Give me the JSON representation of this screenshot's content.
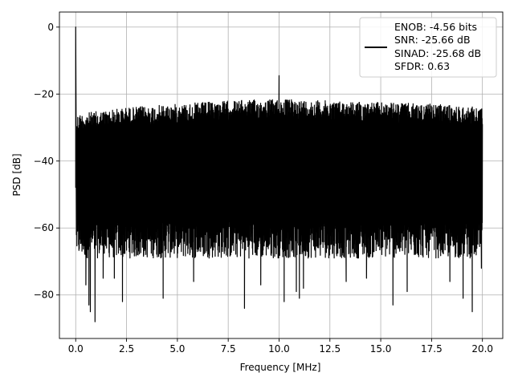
{
  "chart_data": {
    "type": "line",
    "title": "",
    "xlabel": "Frequency [MHz]",
    "ylabel": "PSD [dB]",
    "xlim": [
      -0.8,
      21.0
    ],
    "ylim": [
      -93,
      4.5
    ],
    "xticks": [
      0.0,
      2.5,
      5.0,
      7.5,
      10.0,
      12.5,
      15.0,
      17.5,
      20.0
    ],
    "xtick_labels": [
      "0.0",
      "2.5",
      "5.0",
      "7.5",
      "10.0",
      "12.5",
      "15.0",
      "17.5",
      "20.0"
    ],
    "yticks": [
      0,
      -20,
      -40,
      -60,
      -80
    ],
    "ytick_labels": [
      "0",
      "−20",
      "−40",
      "−60",
      "−80"
    ],
    "grid": true,
    "legend_position": "top-right",
    "legend_lines": [
      "ENOB: -4.56 bits",
      "SNR: -25.66 dB",
      "SINAD: -25.68 dB",
      "SFDR: 0.63"
    ],
    "series": [
      {
        "color": "#000000",
        "dc_peak": {
          "x": 0.0,
          "y": 0.0
        },
        "spike": {
          "x": 10.0,
          "y": -14.5
        },
        "upper_envelope": [
          [
            0.0,
            -26
          ],
          [
            2.5,
            -24
          ],
          [
            5.0,
            -23
          ],
          [
            7.5,
            -22
          ],
          [
            10.0,
            -21.5
          ],
          [
            12.5,
            -22
          ],
          [
            15.0,
            -22.5
          ],
          [
            17.5,
            -23
          ],
          [
            20.0,
            -24
          ]
        ],
        "typical_floor_db": -63,
        "deep_minima": [
          [
            0.5,
            -77
          ],
          [
            0.65,
            -83
          ],
          [
            0.72,
            -85
          ],
          [
            0.95,
            -88
          ],
          [
            1.35,
            -75
          ],
          [
            1.9,
            -75
          ],
          [
            2.3,
            -82
          ],
          [
            4.3,
            -81
          ],
          [
            5.8,
            -76
          ],
          [
            8.3,
            -84
          ],
          [
            9.1,
            -77
          ],
          [
            10.25,
            -82
          ],
          [
            10.85,
            -79
          ],
          [
            11.0,
            -81
          ],
          [
            11.2,
            -78
          ],
          [
            13.3,
            -76
          ],
          [
            14.3,
            -75
          ],
          [
            15.6,
            -83
          ],
          [
            16.3,
            -79
          ],
          [
            18.4,
            -76
          ],
          [
            19.05,
            -81
          ],
          [
            19.5,
            -85
          ],
          [
            19.95,
            -72
          ]
        ]
      }
    ]
  }
}
